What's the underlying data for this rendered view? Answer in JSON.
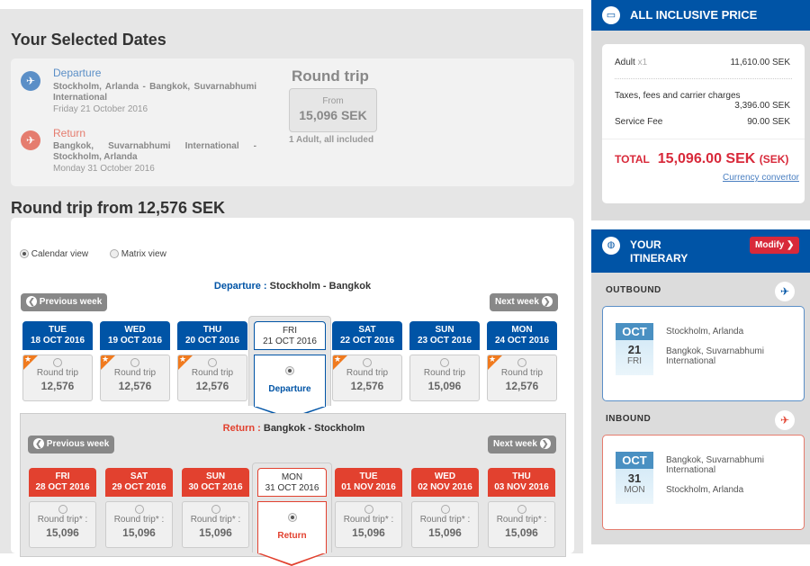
{
  "selected": {
    "title": "Your Selected Dates",
    "departure": {
      "label": "Departure",
      "route": "Stockholm, Arlanda - Bangkok, Suvarnabhumi International",
      "date": "Friday 21 October 2016"
    },
    "return": {
      "label": "Return",
      "route": "Bangkok, Suvarnabhumi International - Stockholm, Arlanda",
      "date": "Monday 31 October 2016"
    },
    "trip_type": "Round trip",
    "from_label": "From",
    "from_price": "15,096 SEK",
    "pax": "1 Adult, all included"
  },
  "calendar": {
    "title": "Round trip from 12,576 SEK",
    "view_calendar": "Calendar view",
    "view_matrix": "Matrix view",
    "prev_week": "Previous week",
    "next_week": "Next week",
    "departure": {
      "label": "Departure :",
      "route": "Stockholm - Bangkok",
      "selected_label": "Departure",
      "days": [
        {
          "day": "TUE",
          "date": "18 OCT 2016",
          "kind": "Round trip",
          "price": "12,576",
          "star": true
        },
        {
          "day": "WED",
          "date": "19 OCT 2016",
          "kind": "Round trip",
          "price": "12,576",
          "star": true
        },
        {
          "day": "THU",
          "date": "20 OCT 2016",
          "kind": "Round trip",
          "price": "12,576",
          "star": true
        },
        {
          "day": "FRI",
          "date": "21 OCT 2016",
          "selected": true
        },
        {
          "day": "SAT",
          "date": "22 OCT 2016",
          "kind": "Round trip",
          "price": "12,576",
          "star": true
        },
        {
          "day": "SUN",
          "date": "23 OCT 2016",
          "kind": "Round trip",
          "price": "15,096",
          "star": false
        },
        {
          "day": "MON",
          "date": "24 OCT 2016",
          "kind": "Round trip",
          "price": "12,576",
          "star": true
        }
      ]
    },
    "return": {
      "label": "Return :",
      "route": "Bangkok - Stockholm",
      "selected_label": "Return",
      "days": [
        {
          "day": "FRI",
          "date": "28 OCT 2016",
          "kind": "Round trip* :",
          "price": "15,096"
        },
        {
          "day": "SAT",
          "date": "29 OCT 2016",
          "kind": "Round trip* :",
          "price": "15,096"
        },
        {
          "day": "SUN",
          "date": "30 OCT 2016",
          "kind": "Round trip* :",
          "price": "15,096"
        },
        {
          "day": "MON",
          "date": "31 OCT 2016",
          "selected": true
        },
        {
          "day": "TUE",
          "date": "01 NOV 2016",
          "kind": "Round trip* :",
          "price": "15,096"
        },
        {
          "day": "WED",
          "date": "02 NOV 2016",
          "kind": "Round trip* :",
          "price": "15,096"
        },
        {
          "day": "THU",
          "date": "03 NOV 2016",
          "kind": "Round trip* :",
          "price": "15,096"
        }
      ]
    }
  },
  "price": {
    "title": "ALL INCLUSIVE PRICE",
    "adult": "Adult",
    "adult_qty": "x1",
    "adult_amount": "11,610.00 SEK",
    "taxes": "Taxes, fees and carrier charges",
    "taxes_amount": "3,396.00 SEK",
    "service": "Service Fee",
    "service_amount": "90.00 SEK",
    "total_label": "TOTAL",
    "total": "15,096.00 SEK",
    "total_cur": "(SEK)",
    "currency_link": "Currency convertor"
  },
  "itinerary": {
    "title_1": "YOUR",
    "title_2": "ITINERARY",
    "modify": "Modify",
    "outbound": {
      "label": "OUTBOUND",
      "month": "OCT",
      "day": "21",
      "weekday": "FRI",
      "from": "Stockholm, Arlanda",
      "to": "Bangkok, Suvarnabhumi International"
    },
    "inbound": {
      "label": "INBOUND",
      "month": "OCT",
      "day": "31",
      "weekday": "MON",
      "from": "Bangkok, Suvarnabhumi International",
      "to": "Stockholm, Arlanda"
    }
  },
  "colors": {
    "blue": "#0054a6",
    "red": "#e2412f",
    "total_red": "#d8293a"
  }
}
